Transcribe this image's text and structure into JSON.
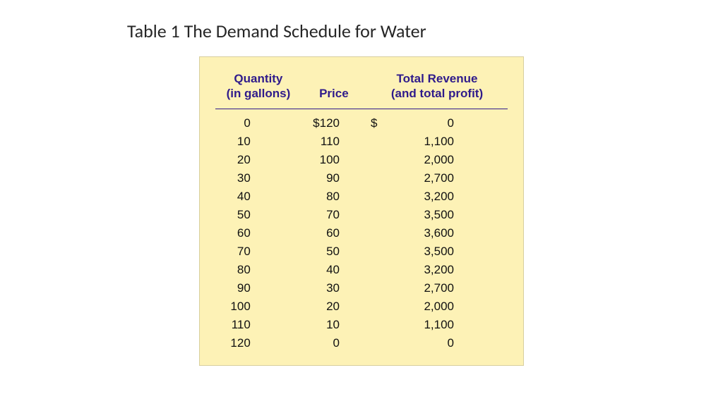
{
  "caption": "Table 1 The Demand Schedule for Water",
  "styles": {
    "card_bg": "#fdf2b6",
    "header_text_color": "#2f1b8b",
    "header_rule_color": "#2f1b8b",
    "body_text_color": "#111111",
    "caption_color": "#262626",
    "card_border_color": "#d8cfa0",
    "header_fontsize_pt": 13,
    "body_fontsize_pt": 13
  },
  "table": {
    "columns": [
      {
        "key": "quantity",
        "label_line1": "Quantity",
        "label_line2": "(in gallons)",
        "align": "right"
      },
      {
        "key": "price",
        "label_line1": "Price",
        "label_line2": "",
        "align": "right"
      },
      {
        "key": "revenue",
        "label_line1": "Total Revenue",
        "label_line2": "(and total profit)",
        "align": "right"
      }
    ],
    "rows": [
      {
        "quantity": "0",
        "price": "$120",
        "revenue_prefix": "$",
        "revenue": "0"
      },
      {
        "quantity": "10",
        "price": "110",
        "revenue_prefix": "",
        "revenue": "1,100"
      },
      {
        "quantity": "20",
        "price": "100",
        "revenue_prefix": "",
        "revenue": "2,000"
      },
      {
        "quantity": "30",
        "price": "90",
        "revenue_prefix": "",
        "revenue": "2,700"
      },
      {
        "quantity": "40",
        "price": "80",
        "revenue_prefix": "",
        "revenue": "3,200"
      },
      {
        "quantity": "50",
        "price": "70",
        "revenue_prefix": "",
        "revenue": "3,500"
      },
      {
        "quantity": "60",
        "price": "60",
        "revenue_prefix": "",
        "revenue": "3,600"
      },
      {
        "quantity": "70",
        "price": "50",
        "revenue_prefix": "",
        "revenue": "3,500"
      },
      {
        "quantity": "80",
        "price": "40",
        "revenue_prefix": "",
        "revenue": "3,200"
      },
      {
        "quantity": "90",
        "price": "30",
        "revenue_prefix": "",
        "revenue": "2,700"
      },
      {
        "quantity": "100",
        "price": "20",
        "revenue_prefix": "",
        "revenue": "2,000"
      },
      {
        "quantity": "110",
        "price": "10",
        "revenue_prefix": "",
        "revenue": "1,100"
      },
      {
        "quantity": "120",
        "price": "0",
        "revenue_prefix": "",
        "revenue": "0"
      }
    ]
  }
}
